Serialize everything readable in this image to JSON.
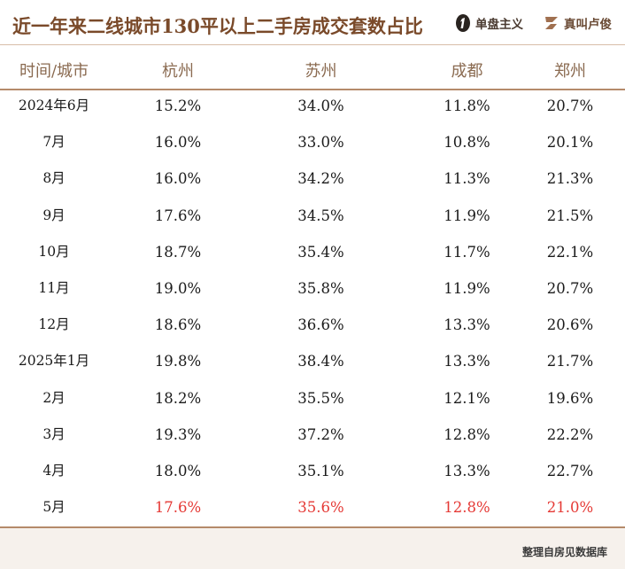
{
  "title": "近一年来二线城市130平以上二手房成交套数占比",
  "brands": [
    {
      "name": "单盘主义",
      "icon": "number-one-badge-icon"
    },
    {
      "name": "真叫卢俊",
      "icon": "z-logo-icon"
    }
  ],
  "colors": {
    "title": "#7a4a2a",
    "header_text": "#8a6a50",
    "rule": "#b58a6a",
    "highlight": "#e53935"
  },
  "source": "整理自房见数据库",
  "chart_data": {
    "type": "table",
    "columns": [
      "时间/城市",
      "杭州",
      "苏州",
      "成都",
      "郑州"
    ],
    "rows": [
      [
        "2024年6月",
        "15.2%",
        "34.0%",
        "11.8%",
        "20.7%"
      ],
      [
        "7月",
        "16.0%",
        "33.0%",
        "10.8%",
        "20.1%"
      ],
      [
        "8月",
        "16.0%",
        "34.2%",
        "11.3%",
        "21.3%"
      ],
      [
        "9月",
        "17.6%",
        "34.5%",
        "11.9%",
        "21.5%"
      ],
      [
        "10月",
        "18.7%",
        "35.4%",
        "11.7%",
        "22.1%"
      ],
      [
        "11月",
        "19.0%",
        "35.8%",
        "11.9%",
        "20.7%"
      ],
      [
        "12月",
        "18.6%",
        "36.6%",
        "13.3%",
        "20.6%"
      ],
      [
        "2025年1月",
        "19.8%",
        "38.4%",
        "13.3%",
        "21.7%"
      ],
      [
        "2月",
        "18.2%",
        "35.5%",
        "12.1%",
        "19.6%"
      ],
      [
        "3月",
        "19.3%",
        "37.2%",
        "12.8%",
        "22.2%"
      ],
      [
        "4月",
        "18.0%",
        "35.1%",
        "13.3%",
        "22.7%"
      ],
      [
        "5月",
        "17.6%",
        "35.6%",
        "12.8%",
        "21.0%"
      ]
    ],
    "highlighted_row": "5月"
  }
}
